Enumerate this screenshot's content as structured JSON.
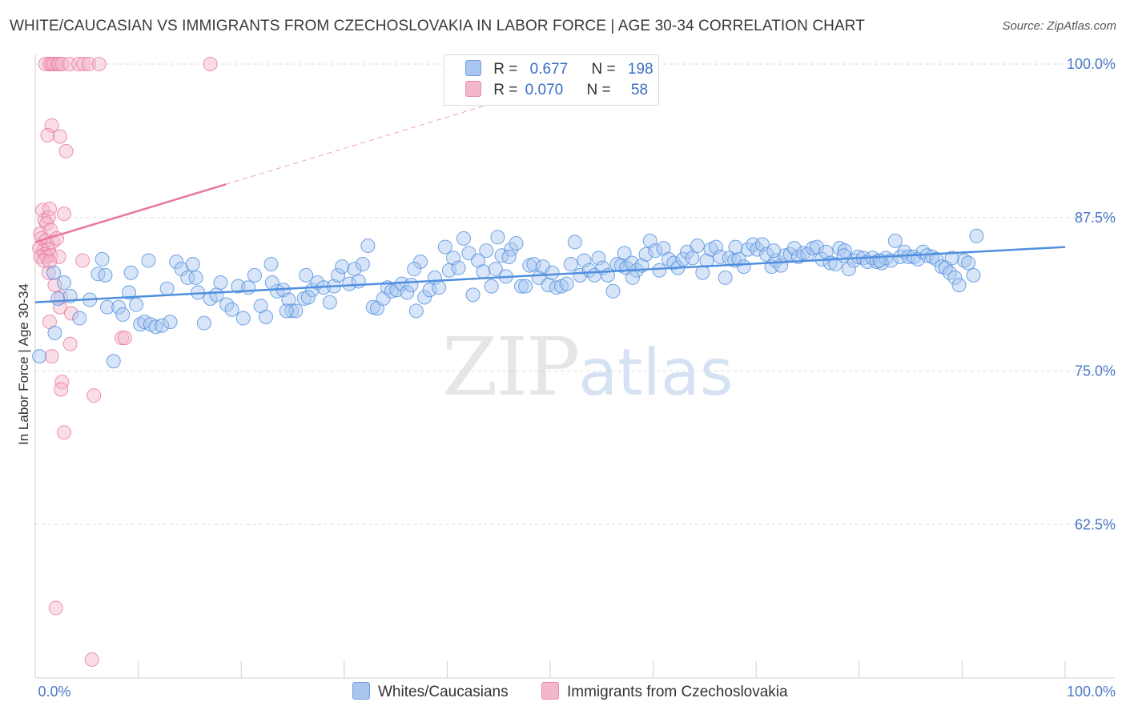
{
  "title": "WHITE/CAUCASIAN VS IMMIGRANTS FROM CZECHOSLOVAKIA IN LABOR FORCE | AGE 30-34 CORRELATION CHART",
  "source": "Source: ZipAtlas.com",
  "watermark": {
    "zip": "ZIP",
    "atlas": "atlas"
  },
  "legend": {
    "rows": [
      {
        "r_label": "R =",
        "r_value": "0.677",
        "n_label": "N =",
        "n_value": "198",
        "color": "#a9c6ef"
      },
      {
        "r_label": "R =",
        "r_value": "0.070",
        "n_label": "N =",
        "n_value": "58",
        "color": "#f4b6c9"
      }
    ]
  },
  "bottom_legend": [
    {
      "label": "Whites/Caucasians",
      "color": "#a9c6ef"
    },
    {
      "label": "Immigrants from Czechoslovakia",
      "color": "#f4b6c9"
    }
  ],
  "chart_data": {
    "type": "scatter",
    "title": "WHITE/CAUCASIAN VS IMMIGRANTS FROM CZECHOSLOVAKIA IN LABOR FORCE | AGE 30-34 CORRELATION CHART",
    "xlabel": "",
    "ylabel": "In Labor Force | Age 30-34",
    "xlim": [
      0,
      100
    ],
    "ylim": [
      50,
      100
    ],
    "x_tick_labels": [
      "0.0%",
      "100.0%"
    ],
    "y_ticks": [
      62.5,
      75.0,
      87.5,
      100.0
    ],
    "y_tick_labels": [
      "62.5%",
      "75.0%",
      "87.5%",
      "100.0%"
    ],
    "grid": "horizontal dashed",
    "series": [
      {
        "name": "Whites/Caucasians",
        "color": "#4f8fde",
        "fill": "#a9c6ef",
        "trend": {
          "x": [
            0,
            100
          ],
          "y": [
            80.6,
            85.1
          ]
        },
        "points": [
          [
            0.4,
            76.2
          ],
          [
            1.9,
            78.1
          ],
          [
            1.8,
            83.0
          ],
          [
            2.2,
            80.9
          ],
          [
            2.8,
            82.2
          ],
          [
            3.4,
            81.1
          ],
          [
            4.3,
            79.3
          ],
          [
            5.3,
            80.8
          ],
          [
            6.1,
            82.9
          ],
          [
            6.5,
            84.1
          ],
          [
            6.8,
            82.8
          ],
          [
            7.0,
            80.2
          ],
          [
            7.6,
            75.8
          ],
          [
            8.1,
            80.2
          ],
          [
            8.5,
            79.6
          ],
          [
            9.1,
            81.4
          ],
          [
            9.3,
            83.0
          ],
          [
            9.8,
            80.4
          ],
          [
            10.2,
            78.8
          ],
          [
            10.6,
            79.0
          ],
          [
            11.2,
            78.8
          ],
          [
            11.7,
            78.6
          ],
          [
            12.3,
            78.7
          ],
          [
            12.8,
            81.7
          ],
          [
            13.1,
            79.0
          ],
          [
            13.7,
            83.9
          ],
          [
            14.2,
            83.3
          ],
          [
            14.8,
            82.6
          ],
          [
            15.3,
            83.7
          ],
          [
            15.8,
            81.4
          ],
          [
            16.4,
            78.9
          ],
          [
            17.0,
            80.9
          ],
          [
            17.6,
            81.2
          ],
          [
            18.0,
            82.2
          ],
          [
            18.6,
            80.4
          ],
          [
            19.1,
            80.0
          ],
          [
            19.7,
            81.9
          ],
          [
            20.2,
            79.3
          ],
          [
            20.7,
            81.8
          ],
          [
            21.3,
            82.8
          ],
          [
            21.9,
            80.3
          ],
          [
            22.4,
            79.4
          ],
          [
            22.9,
            83.7
          ],
          [
            23.5,
            81.5
          ],
          [
            24.1,
            81.6
          ],
          [
            24.6,
            80.8
          ],
          [
            24.9,
            79.9
          ],
          [
            25.3,
            79.9
          ],
          [
            26.1,
            80.9
          ],
          [
            26.3,
            82.8
          ],
          [
            26.9,
            81.6
          ],
          [
            27.4,
            82.2
          ],
          [
            28.0,
            81.8
          ],
          [
            28.6,
            80.6
          ],
          [
            29.0,
            81.9
          ],
          [
            29.4,
            82.8
          ],
          [
            29.8,
            83.5
          ],
          [
            30.5,
            82.1
          ],
          [
            31.0,
            83.3
          ],
          [
            31.4,
            82.3
          ],
          [
            31.8,
            83.7
          ],
          [
            32.3,
            85.2
          ],
          [
            32.8,
            80.2
          ],
          [
            33.2,
            80.1
          ],
          [
            33.8,
            80.9
          ],
          [
            34.2,
            81.8
          ],
          [
            34.6,
            81.5
          ],
          [
            35.1,
            81.6
          ],
          [
            35.6,
            82.1
          ],
          [
            36.1,
            81.4
          ],
          [
            36.5,
            82.0
          ],
          [
            37.0,
            79.9
          ],
          [
            37.4,
            83.9
          ],
          [
            37.8,
            81.0
          ],
          [
            38.3,
            81.6
          ],
          [
            38.8,
            82.6
          ],
          [
            39.2,
            81.8
          ],
          [
            39.8,
            85.1
          ],
          [
            40.2,
            83.2
          ],
          [
            40.6,
            84.2
          ],
          [
            41.1,
            83.4
          ],
          [
            41.6,
            85.8
          ],
          [
            42.1,
            84.6
          ],
          [
            42.5,
            81.2
          ],
          [
            43.0,
            84.0
          ],
          [
            43.5,
            83.1
          ],
          [
            43.8,
            84.8
          ],
          [
            44.3,
            81.9
          ],
          [
            44.7,
            83.3
          ],
          [
            45.3,
            84.4
          ],
          [
            45.7,
            82.7
          ],
          [
            46.2,
            84.9
          ],
          [
            46.7,
            85.4
          ],
          [
            47.2,
            81.9
          ],
          [
            47.6,
            81.9
          ],
          [
            48.0,
            83.6
          ],
          [
            48.4,
            83.7
          ],
          [
            48.9,
            82.6
          ],
          [
            49.3,
            83.5
          ],
          [
            49.8,
            82.0
          ],
          [
            50.2,
            83.0
          ],
          [
            50.6,
            81.8
          ],
          [
            51.1,
            81.9
          ],
          [
            51.6,
            82.1
          ],
          [
            52.0,
            83.7
          ],
          [
            52.4,
            85.5
          ],
          [
            52.9,
            82.8
          ],
          [
            53.3,
            84.0
          ],
          [
            53.8,
            83.2
          ],
          [
            54.3,
            82.8
          ],
          [
            54.7,
            84.2
          ],
          [
            55.1,
            83.4
          ],
          [
            55.6,
            82.8
          ],
          [
            56.1,
            81.5
          ],
          [
            56.5,
            83.7
          ],
          [
            56.9,
            83.6
          ],
          [
            57.4,
            83.4
          ],
          [
            57.9,
            83.8
          ],
          [
            58.4,
            83.2
          ],
          [
            58.9,
            83.6
          ],
          [
            59.3,
            84.5
          ],
          [
            59.7,
            85.6
          ],
          [
            60.2,
            84.8
          ],
          [
            60.6,
            83.2
          ],
          [
            61.0,
            85.0
          ],
          [
            61.5,
            84.1
          ],
          [
            62.0,
            83.8
          ],
          [
            62.4,
            83.4
          ],
          [
            62.9,
            84.1
          ],
          [
            63.3,
            84.7
          ],
          [
            63.8,
            84.2
          ],
          [
            64.3,
            85.2
          ],
          [
            64.8,
            83.0
          ],
          [
            65.2,
            84.0
          ],
          [
            65.6,
            84.9
          ],
          [
            66.1,
            85.1
          ],
          [
            66.5,
            84.3
          ],
          [
            67.0,
            82.6
          ],
          [
            67.4,
            84.2
          ],
          [
            67.9,
            84.0
          ],
          [
            68.3,
            84.1
          ],
          [
            68.8,
            83.5
          ],
          [
            69.2,
            84.9
          ],
          [
            69.7,
            85.3
          ],
          [
            70.1,
            84.9
          ],
          [
            70.6,
            85.3
          ],
          [
            71.0,
            84.5
          ],
          [
            71.5,
            83.5
          ],
          [
            71.9,
            84.0
          ],
          [
            72.4,
            83.6
          ],
          [
            72.8,
            84.4
          ],
          [
            73.3,
            84.5
          ],
          [
            73.7,
            85.0
          ],
          [
            74.1,
            84.3
          ],
          [
            74.6,
            84.6
          ],
          [
            75.0,
            84.5
          ],
          [
            75.5,
            85.0
          ],
          [
            75.9,
            85.1
          ],
          [
            76.4,
            84.1
          ],
          [
            76.8,
            84.7
          ],
          [
            77.2,
            83.8
          ],
          [
            77.7,
            83.7
          ],
          [
            78.1,
            85.0
          ],
          [
            78.6,
            84.8
          ],
          [
            79.0,
            83.3
          ],
          [
            79.5,
            84.0
          ],
          [
            79.9,
            84.3
          ],
          [
            80.4,
            84.2
          ],
          [
            80.8,
            83.9
          ],
          [
            81.3,
            84.2
          ],
          [
            81.7,
            83.9
          ],
          [
            82.2,
            83.8
          ],
          [
            82.6,
            84.2
          ],
          [
            83.1,
            84.0
          ],
          [
            83.5,
            85.6
          ],
          [
            84.0,
            84.3
          ],
          [
            84.4,
            84.7
          ],
          [
            84.8,
            84.3
          ],
          [
            85.3,
            84.3
          ],
          [
            85.7,
            84.1
          ],
          [
            86.2,
            84.7
          ],
          [
            86.6,
            84.4
          ],
          [
            87.1,
            84.3
          ],
          [
            87.5,
            84.1
          ],
          [
            88.0,
            83.5
          ],
          [
            88.4,
            83.4
          ],
          [
            88.8,
            83.0
          ],
          [
            89.3,
            82.6
          ],
          [
            89.7,
            82.0
          ],
          [
            90.2,
            84.0
          ],
          [
            90.6,
            83.8
          ],
          [
            91.1,
            82.8
          ],
          [
            11.0,
            84.0
          ],
          [
            15.6,
            82.6
          ],
          [
            26.5,
            81.0
          ],
          [
            36.8,
            83.3
          ],
          [
            46.0,
            84.3
          ],
          [
            58.0,
            82.6
          ],
          [
            68.0,
            85.1
          ],
          [
            78.5,
            84.4
          ],
          [
            91.4,
            86.0
          ],
          [
            89.0,
            84.2
          ],
          [
            57.2,
            84.6
          ],
          [
            24.4,
            79.9
          ],
          [
            44.9,
            85.9
          ],
          [
            23.0,
            82.2
          ],
          [
            71.7,
            84.8
          ],
          [
            82.0,
            84.0
          ]
        ]
      },
      {
        "name": "Immigrants from Czechoslovakia",
        "color": "#e8789c",
        "fill": "#f4b6c9",
        "trend": {
          "x": [
            0,
            18.5
          ],
          "y": [
            85.5,
            90.2
          ],
          "dashed_to": {
            "x": 55,
            "y": 99.5
          }
        },
        "points": [
          [
            1.0,
            100.0
          ],
          [
            1.4,
            100.0
          ],
          [
            1.6,
            100.0
          ],
          [
            1.8,
            100.0
          ],
          [
            2.1,
            100.0
          ],
          [
            2.3,
            100.0
          ],
          [
            2.6,
            100.0
          ],
          [
            3.3,
            100.0
          ],
          [
            4.2,
            100.0
          ],
          [
            4.7,
            100.0
          ],
          [
            5.2,
            100.0
          ],
          [
            6.2,
            100.0
          ],
          [
            17.0,
            100.0
          ],
          [
            1.6,
            95.0
          ],
          [
            1.2,
            94.2
          ],
          [
            2.4,
            94.1
          ],
          [
            3.0,
            92.9
          ],
          [
            0.7,
            88.1
          ],
          [
            1.4,
            88.2
          ],
          [
            2.8,
            87.8
          ],
          [
            0.9,
            87.3
          ],
          [
            1.3,
            87.5
          ],
          [
            1.1,
            87.0
          ],
          [
            0.5,
            86.2
          ],
          [
            1.5,
            86.5
          ],
          [
            0.6,
            85.8
          ],
          [
            1.0,
            85.6
          ],
          [
            1.2,
            85.3
          ],
          [
            1.7,
            85.5
          ],
          [
            2.1,
            85.8
          ],
          [
            0.4,
            85.0
          ],
          [
            0.8,
            84.8
          ],
          [
            1.3,
            84.9
          ],
          [
            0.9,
            84.5
          ],
          [
            0.5,
            84.3
          ],
          [
            1.1,
            84.3
          ],
          [
            1.5,
            84.4
          ],
          [
            2.3,
            84.3
          ],
          [
            0.8,
            84.0
          ],
          [
            1.4,
            83.9
          ],
          [
            4.6,
            84.0
          ],
          [
            1.3,
            83.0
          ],
          [
            1.9,
            82.0
          ],
          [
            2.5,
            81.0
          ],
          [
            2.4,
            80.2
          ],
          [
            3.5,
            79.7
          ],
          [
            1.4,
            79.0
          ],
          [
            3.4,
            77.2
          ],
          [
            8.4,
            77.7
          ],
          [
            8.7,
            77.7
          ],
          [
            1.6,
            76.2
          ],
          [
            2.6,
            74.1
          ],
          [
            2.5,
            73.5
          ],
          [
            5.7,
            73.0
          ],
          [
            2.8,
            70.0
          ],
          [
            2.0,
            55.7
          ],
          [
            5.5,
            51.5
          ]
        ]
      }
    ]
  }
}
